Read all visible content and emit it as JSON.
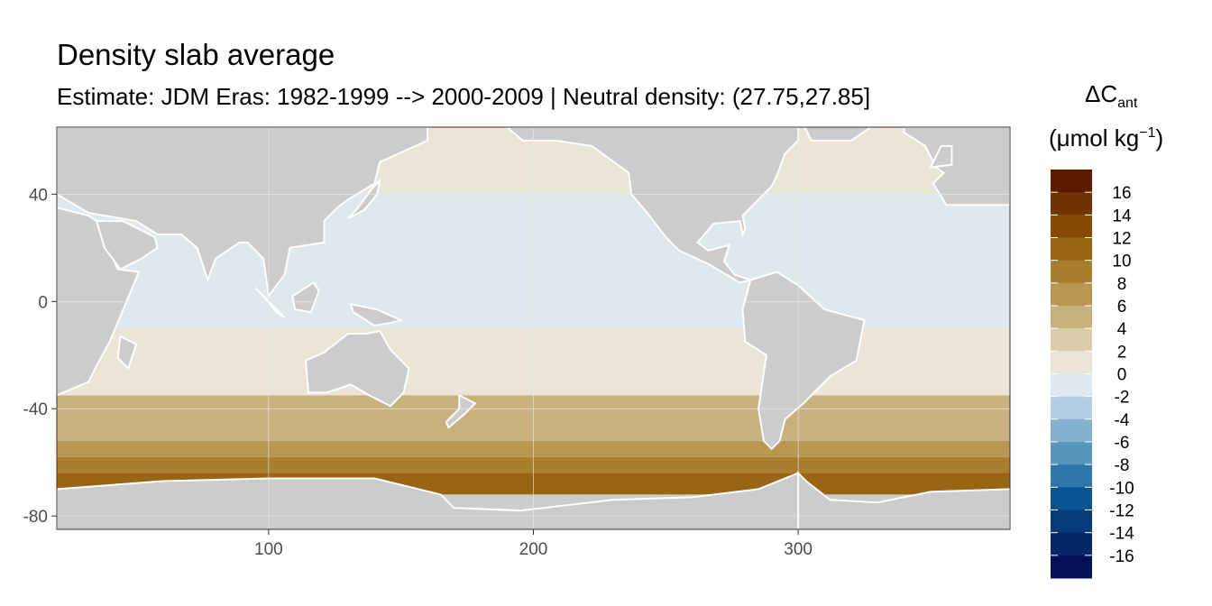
{
  "chart_data": {
    "type": "heatmap",
    "title": "Density slab average",
    "subtitle": "Estimate: JDM Eras: 1982-1999 --> 2000-2009 | Neutral density: (27.75,27.85]",
    "xlim": [
      20,
      380
    ],
    "ylim": [
      -85,
      65
    ],
    "x_ticks": [
      100,
      200,
      300
    ],
    "y_ticks": [
      40,
      0,
      -40,
      -80
    ],
    "grid": true,
    "legend": {
      "position": "right",
      "title_main": "ΔC",
      "title_sub": "ant",
      "unit_main": "(μmol kg",
      "unit_sup": "−1",
      "unit_close": ")",
      "labels": [
        "16",
        "14",
        "12",
        "10",
        "8",
        "6",
        "4",
        "2",
        "0",
        "-2",
        "-4",
        "-6",
        "-8",
        "-10",
        "-12",
        "-14",
        "-16"
      ],
      "colors": [
        "#5e1a00",
        "#723300",
        "#864a04",
        "#996514",
        "#a97e2f",
        "#b99753",
        "#c9b07f",
        "#dccca9",
        "#ebe5d8",
        "#dfe8ec",
        "#b2cde0",
        "#82b2cf",
        "#5797be",
        "#2d77aa",
        "#0a5590",
        "#063c7a",
        "#042666",
        "#031159"
      ]
    },
    "bands": [
      {
        "lat_range": [
          -85,
          -72
        ],
        "value": null
      },
      {
        "lat_range": [
          -72,
          -64
        ],
        "value": 11
      },
      {
        "lat_range": [
          -64,
          -58
        ],
        "value": 9
      },
      {
        "lat_range": [
          -58,
          -52
        ],
        "value": 7
      },
      {
        "lat_range": [
          -52,
          -35
        ],
        "value": 5
      },
      {
        "lat_range": [
          -35,
          -10
        ],
        "value": 1
      },
      {
        "lat_range": [
          -10,
          40
        ],
        "value": -1
      },
      {
        "lat_range": [
          40,
          65
        ],
        "value": 1
      }
    ],
    "colors": {
      "land": "#cccccc",
      "grid": "#ebebeb",
      "border": "#333333"
    }
  }
}
